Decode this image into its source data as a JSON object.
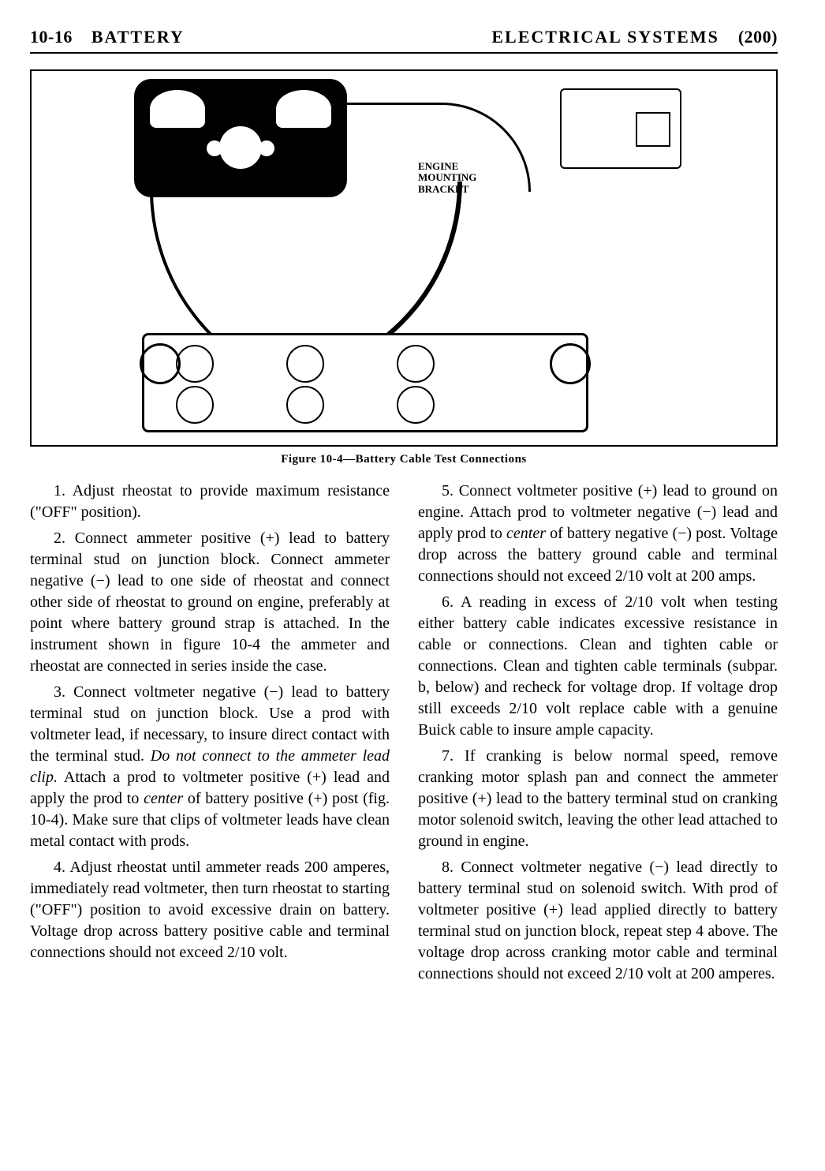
{
  "header": {
    "page_code": "10-16",
    "section_left": "BATTERY",
    "section_right": "ELECTRICAL SYSTEMS",
    "page_number": "(200)"
  },
  "figure": {
    "caption": "Figure 10-4—Battery Cable Test Connections",
    "engine_label_l1": "ENGINE",
    "engine_label_l2": "MOUNTING",
    "engine_label_l3": "BRACKET"
  },
  "paras": {
    "p1": "1. Adjust rheostat to provide maximum resistance (\"OFF\" position).",
    "p2": "2. Connect ammeter positive (+) lead to battery terminal stud on junction block. Connect ammeter negative (−) lead to one side of rheostat and connect other side of rheostat to ground on engine, preferably at point where battery ground strap is attached. In the instrument shown in figure 10-4 the ammeter and rheostat are connected in series inside the case.",
    "p3a": "3. Connect voltmeter negative (−) lead to battery terminal stud on junction block. Use a prod with voltmeter lead, if necessary, to insure direct contact with the terminal stud. ",
    "p3i": "Do not connect to the ammeter lead clip.",
    "p3b": " Attach a prod to voltmeter positive (+) lead and apply the prod to ",
    "p3c": "center",
    "p3d": " of battery positive (+) post (fig. 10-4). Make sure that clips of voltmeter leads have clean metal contact with prods.",
    "p4": "4. Adjust rheostat until ammeter reads 200 amperes, immediately read voltmeter, then turn rheostat to starting (\"OFF\") position to avoid excessive drain on battery. Voltage drop across battery positive cable and terminal connections should not exceed 2/10 volt.",
    "p5a": "5. Connect voltmeter positive (+) lead to ground on engine. Attach prod to voltmeter negative (−) lead and apply prod to ",
    "p5c": "center",
    "p5b": " of battery negative (−) post. Voltage drop across the battery ground cable and terminal connections should not exceed 2/10 volt at 200 amps.",
    "p6": "6. A reading in excess of 2/10 volt when testing either battery cable indicates excessive resistance in cable or connections. Clean and tighten cable or connections. Clean and tighten cable terminals (subpar. b, below) and recheck for voltage drop. If voltage drop still exceeds 2/10 volt replace cable with a genuine Buick cable to insure ample capacity.",
    "p7": "7. If cranking is below normal speed, remove cranking motor splash pan and connect the ammeter positive (+) lead to the battery terminal stud on cranking motor solenoid switch, leaving the other lead attached to ground in engine.",
    "p8": "8. Connect voltmeter negative (−) lead directly to battery terminal stud on solenoid switch. With prod of voltmeter positive (+) lead applied directly to battery terminal stud on junction block, repeat step 4 above. The voltage drop across cranking motor cable and terminal connections should not exceed 2/10 volt at 200 amperes."
  }
}
